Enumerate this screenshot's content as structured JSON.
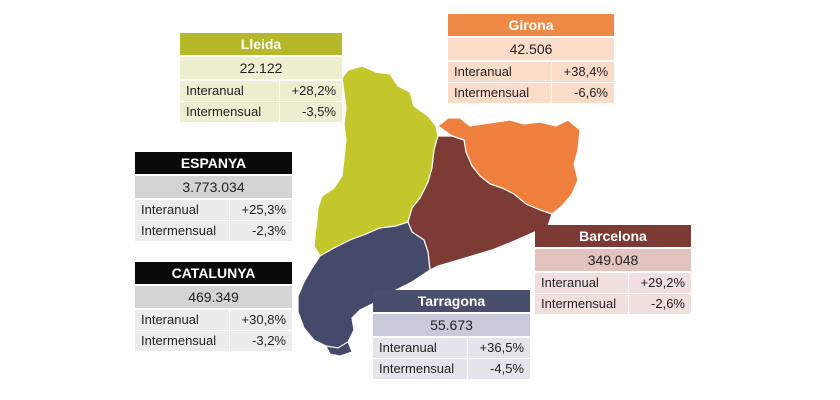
{
  "colors": {
    "lleida": "#c4c72c",
    "girona": "#ef7f3c",
    "barcelona": "#7d3b35",
    "tarragona": "#45496a"
  },
  "cards": {
    "lleida": {
      "title": "Lleida",
      "total": "22.122",
      "rows": [
        {
          "label": "Interanual",
          "value": "+28,2%"
        },
        {
          "label": "Intermensual",
          "value": "-3,5%"
        }
      ]
    },
    "girona": {
      "title": "Girona",
      "total": "42.506",
      "rows": [
        {
          "label": "Interanual",
          "value": "+38,4%"
        },
        {
          "label": "Intermensual",
          "value": "-6,6%"
        }
      ]
    },
    "espanya": {
      "title": "ESPANYA",
      "total": "3.773.034",
      "rows": [
        {
          "label": "Interanual",
          "value": "+25,3%"
        },
        {
          "label": "Intermensual",
          "value": "-2,3%"
        }
      ]
    },
    "catalunya": {
      "title": "CATALUNYA",
      "total": "469.349",
      "rows": [
        {
          "label": "Interanual",
          "value": "+30,8%"
        },
        {
          "label": "Intermensual",
          "value": "-3,2%"
        }
      ]
    },
    "barcelona": {
      "title": "Barcelona",
      "total": "349.048",
      "rows": [
        {
          "label": "Interanual",
          "value": "+29,2%"
        },
        {
          "label": "Intermensual",
          "value": "-2,6%"
        }
      ]
    },
    "tarragona": {
      "title": "Tarragona",
      "total": "55.673",
      "rows": [
        {
          "label": "Interanual",
          "value": "+36,5%"
        },
        {
          "label": "Intermensual",
          "value": "-4,5%"
        }
      ]
    }
  }
}
